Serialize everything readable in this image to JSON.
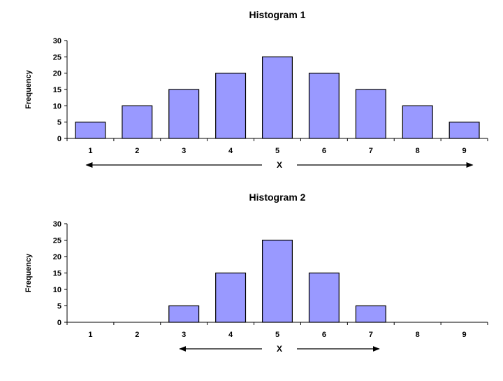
{
  "chart_data": [
    {
      "type": "bar",
      "title": "Histogram 1",
      "xlabel": "X",
      "ylabel": "Frequency",
      "categories": [
        "1",
        "2",
        "3",
        "4",
        "5",
        "6",
        "7",
        "8",
        "9"
      ],
      "values": [
        5,
        10,
        15,
        20,
        25,
        20,
        15,
        10,
        5
      ],
      "ylim": [
        0,
        30
      ],
      "yticks": [
        0,
        5,
        10,
        15,
        20,
        25,
        30
      ],
      "grid": false,
      "legend": "none",
      "x_range_arrow": [
        "1",
        "9"
      ],
      "bar_color": "#9999ff",
      "edge_color": "#000000"
    },
    {
      "type": "bar",
      "title": "Histogram 2",
      "xlabel": "X",
      "ylabel": "Frequency",
      "categories": [
        "1",
        "2",
        "3",
        "4",
        "5",
        "6",
        "7",
        "8",
        "9"
      ],
      "values": [
        0,
        0,
        5,
        15,
        25,
        15,
        5,
        0,
        0
      ],
      "ylim": [
        0,
        30
      ],
      "yticks": [
        0,
        5,
        10,
        15,
        20,
        25,
        30
      ],
      "grid": false,
      "legend": "none",
      "x_range_arrow": [
        "3",
        "7"
      ],
      "bar_color": "#9999ff",
      "edge_color": "#000000"
    }
  ]
}
